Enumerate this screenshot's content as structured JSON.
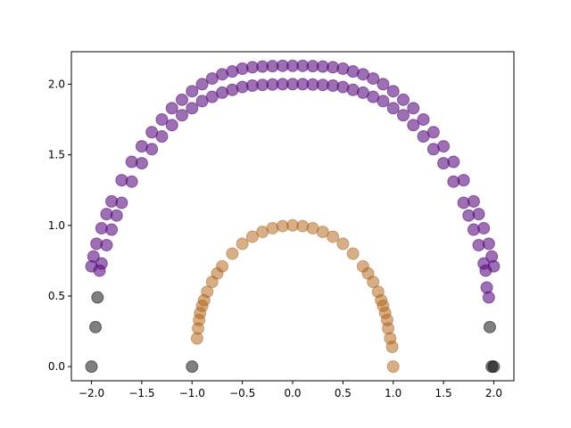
{
  "chart_data": {
    "type": "scatter",
    "title": "",
    "xlabel": "",
    "ylabel": "",
    "xlim": [
      -2.2,
      2.2
    ],
    "ylim": [
      -0.1,
      2.23
    ],
    "grid": false,
    "x_ticks": [
      -2.0,
      -1.5,
      -1.0,
      -0.5,
      0.0,
      0.5,
      1.0,
      1.5,
      2.0
    ],
    "x_tick_labels": [
      "−2.0",
      "−1.5",
      "−1.0",
      "−0.5",
      "0.0",
      "0.5",
      "1.0",
      "1.5",
      "2.0"
    ],
    "y_ticks": [
      0.0,
      0.5,
      1.0,
      1.5,
      2.0
    ],
    "y_tick_labels": [
      "0.0",
      "0.5",
      "1.0",
      "1.5",
      "2.0"
    ],
    "series": [
      {
        "color": "#5b0f80",
        "opacity": 0.6,
        "x": [
          -1.92,
          -1.9,
          -1.85,
          -1.8,
          -1.75,
          -1.7,
          -1.6,
          -1.5,
          -1.4,
          -1.3,
          -1.2,
          -1.1,
          -1.0,
          -0.9,
          -0.8,
          -0.7,
          -0.6,
          -0.5,
          -0.4,
          -0.3,
          -0.2,
          -0.1,
          0.0,
          0.1,
          0.2,
          0.3,
          0.4,
          0.5,
          0.6,
          0.7,
          0.8,
          0.9,
          1.0,
          1.1,
          1.2,
          1.3,
          1.4,
          1.5,
          1.6,
          1.7,
          1.75,
          1.8,
          1.85,
          1.9,
          1.92
        ],
        "y": [
          0.68,
          0.73,
          0.86,
          0.97,
          1.07,
          1.16,
          1.31,
          1.44,
          1.54,
          1.63,
          1.71,
          1.78,
          1.83,
          1.88,
          1.91,
          1.94,
          1.96,
          1.98,
          1.99,
          1.995,
          1.998,
          2.0,
          2.0,
          2.0,
          1.998,
          1.995,
          1.99,
          1.98,
          1.96,
          1.94,
          1.91,
          1.88,
          1.83,
          1.78,
          1.71,
          1.63,
          1.54,
          1.44,
          1.31,
          1.16,
          1.07,
          0.97,
          0.86,
          0.73,
          0.68
        ]
      },
      {
        "color": "#5b0f80",
        "opacity": 0.6,
        "x": [
          -2.0,
          -1.98,
          -1.95,
          -1.9,
          -1.85,
          -1.8,
          -1.7,
          -1.6,
          -1.5,
          -1.4,
          -1.3,
          -1.2,
          -1.1,
          -1.0,
          -0.9,
          -0.8,
          -0.7,
          -0.6,
          -0.5,
          -0.4,
          -0.3,
          -0.2,
          -0.1,
          0.0,
          0.1,
          0.2,
          0.3,
          0.4,
          0.5,
          0.6,
          0.7,
          0.8,
          0.9,
          1.0,
          1.1,
          1.2,
          1.3,
          1.4,
          1.5,
          1.6,
          1.7,
          1.8,
          1.85,
          1.9,
          1.95,
          1.98,
          2.0
        ],
        "y": [
          0.71,
          0.78,
          0.87,
          0.98,
          1.08,
          1.17,
          1.32,
          1.45,
          1.56,
          1.66,
          1.75,
          1.83,
          1.89,
          1.95,
          2.0,
          2.04,
          2.07,
          2.09,
          2.11,
          2.12,
          2.125,
          2.128,
          2.13,
          2.13,
          2.13,
          2.128,
          2.125,
          2.12,
          2.11,
          2.09,
          2.07,
          2.04,
          2.0,
          1.95,
          1.89,
          1.83,
          1.75,
          1.66,
          1.56,
          1.45,
          1.32,
          1.17,
          1.08,
          0.98,
          0.87,
          0.78,
          0.71
        ]
      },
      {
        "color": "#5b0f80",
        "opacity": 0.6,
        "x": [
          1.93,
          1.95
        ],
        "y": [
          0.56,
          0.49
        ]
      },
      {
        "color": "#ad5f12",
        "opacity": 0.5,
        "x": [
          -0.95,
          -0.94,
          -0.93,
          -0.92,
          -0.9,
          -0.88,
          -0.85,
          -0.8,
          -0.75,
          -0.7,
          -0.6,
          -0.5,
          -0.4,
          -0.3,
          -0.2,
          -0.1,
          0.0,
          0.1,
          0.2,
          0.3,
          0.4,
          0.5,
          0.6,
          0.7,
          0.75,
          0.8,
          0.85,
          0.88,
          0.9,
          0.92,
          0.94,
          0.95,
          0.97,
          0.99,
          1.0
        ],
        "y": [
          0.2,
          0.27,
          0.33,
          0.38,
          0.43,
          0.47,
          0.53,
          0.6,
          0.66,
          0.71,
          0.8,
          0.87,
          0.92,
          0.954,
          0.98,
          0.995,
          1.0,
          0.995,
          0.98,
          0.954,
          0.92,
          0.87,
          0.8,
          0.71,
          0.66,
          0.6,
          0.53,
          0.47,
          0.43,
          0.38,
          0.33,
          0.27,
          0.2,
          0.14,
          0.0
        ]
      },
      {
        "color": "#000000",
        "opacity": 0.5,
        "x": [
          -2.0,
          -1.96,
          -1.94,
          -1.0,
          1.96,
          1.98,
          2.0
        ],
        "y": [
          0.0,
          0.28,
          0.49,
          0.0,
          0.28,
          0.0,
          0.0
        ]
      }
    ]
  }
}
